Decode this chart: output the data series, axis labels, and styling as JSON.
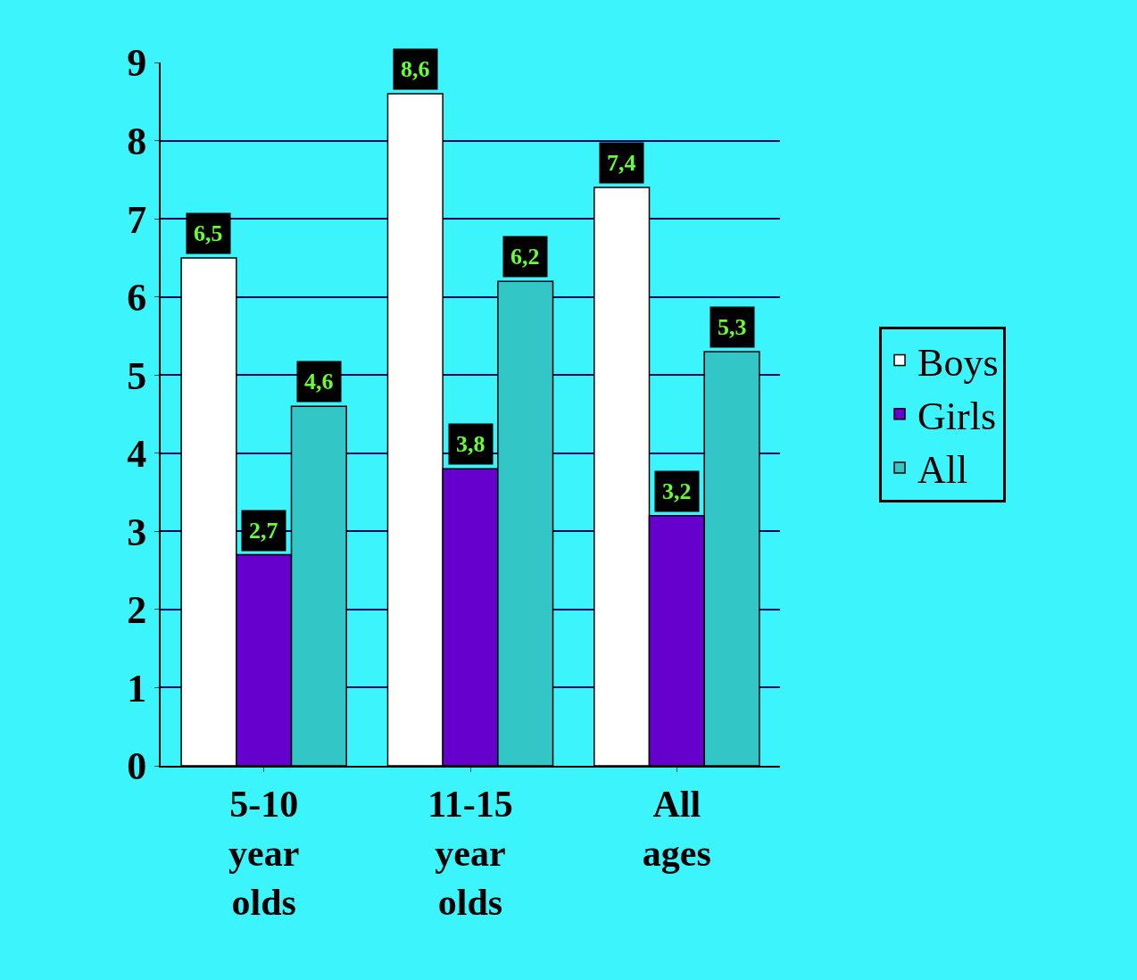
{
  "chart_data": {
    "type": "bar",
    "categories": [
      "5-10 year olds",
      "11-15 year olds",
      "All ages"
    ],
    "series": [
      {
        "name": "Boys",
        "color": "#ffffff",
        "values": [
          6.5,
          8.6,
          7.4
        ],
        "value_labels": [
          "6,5",
          "8,6",
          "7,4"
        ]
      },
      {
        "name": "Girls",
        "color": "#6600cc",
        "values": [
          2.7,
          3.8,
          3.2
        ],
        "value_labels": [
          "2,7",
          "3,8",
          "3,2"
        ]
      },
      {
        "name": "All",
        "color": "#33c6c6",
        "values": [
          4.6,
          6.2,
          5.3
        ],
        "value_labels": [
          "4,6",
          "6,2",
          "5,3"
        ]
      }
    ],
    "ylim": [
      0,
      9
    ],
    "yticks": [
      0,
      1,
      2,
      3,
      4,
      5,
      6,
      7,
      8,
      9
    ],
    "grid": "y",
    "legend": "right"
  }
}
